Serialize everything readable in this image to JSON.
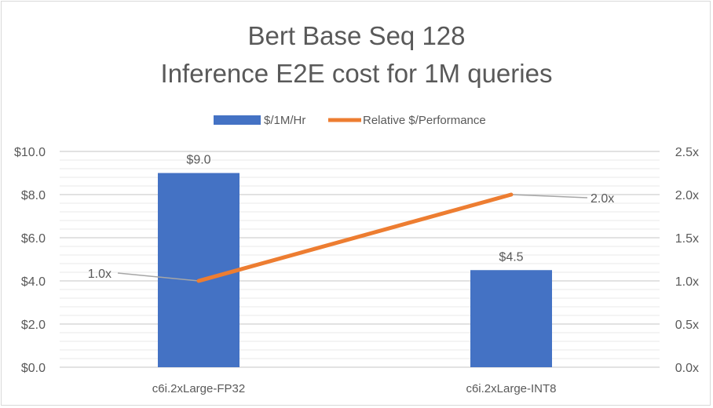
{
  "chart_data": {
    "type": "bar",
    "title": [
      "Bert Base Seq 128",
      "Inference E2E cost for 1M queries"
    ],
    "categories": [
      "c6i.2xLarge-FP32",
      "c6i.2xLarge-INT8"
    ],
    "series": [
      {
        "name": "$/1M/Hr",
        "type": "bar",
        "axis": "left",
        "values": [
          9.0,
          4.5
        ],
        "labels": [
          "$9.0",
          "$4.5"
        ],
        "color": "#4472c4"
      },
      {
        "name": "Relative $/Performance",
        "type": "line",
        "axis": "right",
        "values": [
          1.0,
          2.0
        ],
        "labels": [
          "1.0x",
          "2.0x"
        ],
        "color": "#ed7d31"
      }
    ],
    "left_axis": {
      "range": [
        0,
        10
      ],
      "ticks": [
        0,
        2,
        4,
        6,
        8,
        10
      ],
      "tick_labels": [
        "$0.0",
        "$2.0",
        "$4.0",
        "$6.0",
        "$8.0",
        "$10.0"
      ]
    },
    "right_axis": {
      "range": [
        0,
        2.5
      ],
      "ticks": [
        0,
        0.5,
        1,
        1.5,
        2,
        2.5
      ],
      "tick_labels": [
        "0.0x",
        "0.5x",
        "1.0x",
        "1.5x",
        "2.0x",
        "2.5x"
      ]
    },
    "grid": true,
    "legend": "top-center",
    "xlabel": "",
    "ylabel": ""
  }
}
